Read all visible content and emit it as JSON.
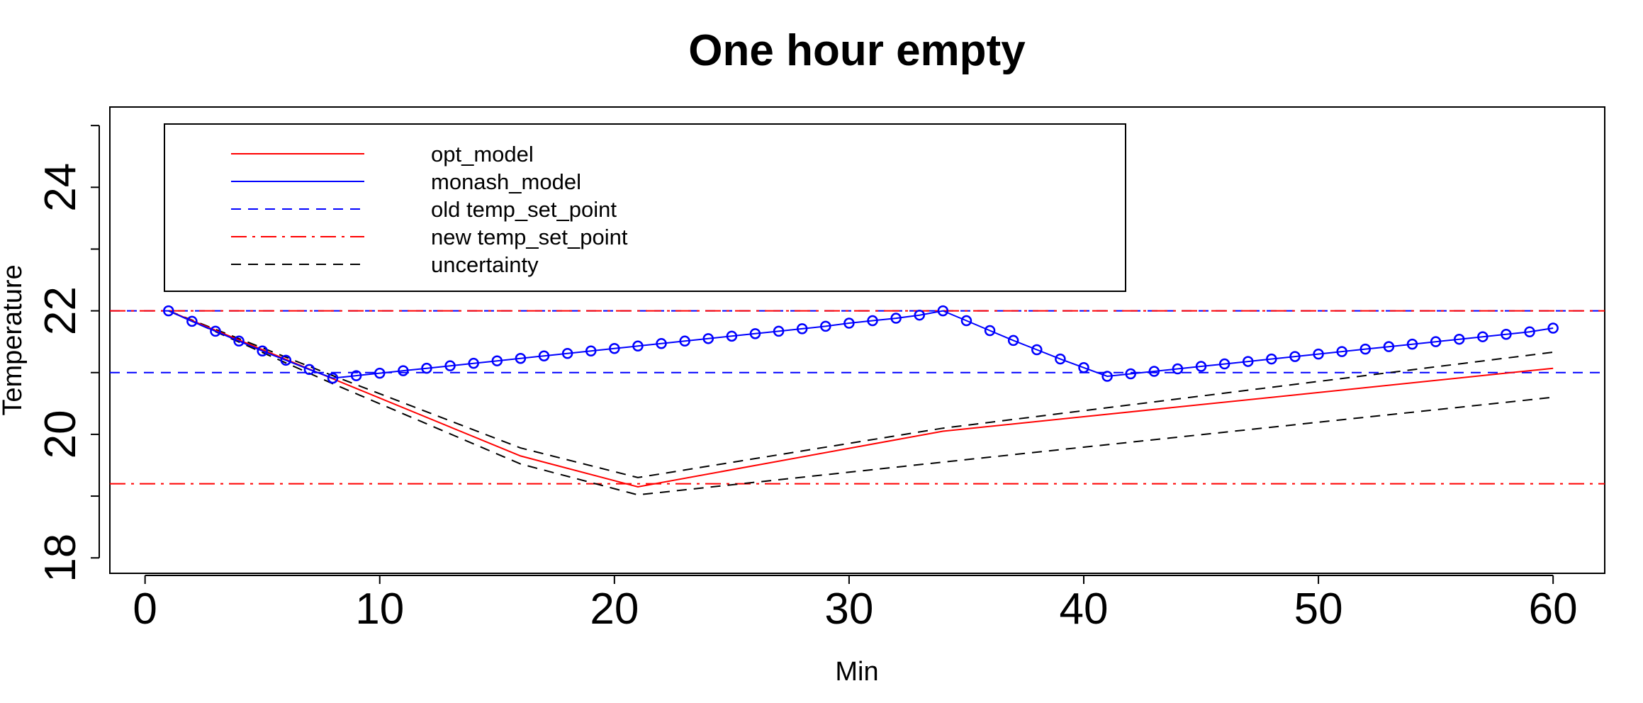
{
  "chart_data": {
    "type": "line",
    "title": "One hour empty",
    "xlabel": "Min",
    "ylabel": "Temperature",
    "xlim": [
      -1.5,
      62.2
    ],
    "ylim": [
      17.75,
      25.3
    ],
    "xticks": [
      0,
      10,
      20,
      30,
      40,
      50,
      60
    ],
    "yticks": [
      18,
      20,
      22,
      24
    ],
    "yticks_minor": [
      19,
      21,
      23,
      25
    ],
    "grid": false,
    "legend_position": "top-left",
    "series": [
      {
        "name": "opt_model",
        "color": "#ff0000",
        "dash": "solid",
        "markers": false,
        "x": [
          1,
          8,
          16,
          21,
          34,
          60
        ],
        "y": [
          22.0,
          20.9,
          19.65,
          19.15,
          20.05,
          21.07
        ]
      },
      {
        "name": "monash_model",
        "color": "#0000ff",
        "dash": "solid",
        "markers": true,
        "x": [
          1,
          2,
          3,
          4,
          5,
          6,
          7,
          8,
          9,
          10,
          11,
          12,
          13,
          14,
          15,
          16,
          17,
          18,
          19,
          20,
          21,
          22,
          23,
          24,
          25,
          26,
          27,
          28,
          29,
          30,
          31,
          32,
          33,
          34,
          35,
          36,
          37,
          38,
          39,
          40,
          41,
          42,
          43,
          44,
          45,
          46,
          47,
          48,
          49,
          50,
          51,
          52,
          53,
          54,
          55,
          56,
          57,
          58,
          59,
          60
        ],
        "y": [
          22.0,
          21.83,
          21.67,
          21.51,
          21.35,
          21.2,
          21.05,
          20.91,
          20.95,
          20.99,
          21.03,
          21.07,
          21.11,
          21.15,
          21.19,
          21.23,
          21.27,
          21.31,
          21.35,
          21.39,
          21.43,
          21.47,
          21.51,
          21.55,
          21.59,
          21.63,
          21.67,
          21.71,
          21.75,
          21.8,
          21.84,
          21.88,
          21.93,
          22.0,
          21.84,
          21.68,
          21.52,
          21.37,
          21.22,
          21.08,
          20.94,
          20.98,
          21.02,
          21.06,
          21.1,
          21.14,
          21.18,
          21.22,
          21.26,
          21.3,
          21.34,
          21.38,
          21.42,
          21.46,
          21.5,
          21.54,
          21.58,
          21.62,
          21.66,
          21.72
        ]
      },
      {
        "name": "old temp_set_point",
        "color": "#0000ff",
        "dash": "dashed",
        "markers": false,
        "hline": 21.0
      },
      {
        "name": "new temp_set_point",
        "color": "#ff0000",
        "dash": "dotdash",
        "markers": false,
        "hlines": [
          22.0,
          19.2
        ]
      },
      {
        "name": "uncertainty",
        "color": "#000000",
        "dash": "dashed",
        "markers": false,
        "bands": [
          {
            "x": [
              1,
              8,
              16,
              21,
              34,
              60
            ],
            "y": [
              22.0,
              20.95,
              19.78,
              19.3,
              20.1,
              21.33
            ]
          },
          {
            "x": [
              1,
              8,
              16,
              21,
              34,
              60
            ],
            "y": [
              22.0,
              20.82,
              19.52,
              19.02,
              19.55,
              20.6
            ]
          }
        ]
      }
    ],
    "extra_lines": [
      {
        "color": "#0000ff",
        "dash": "dashed",
        "y": 22.0
      }
    ]
  }
}
